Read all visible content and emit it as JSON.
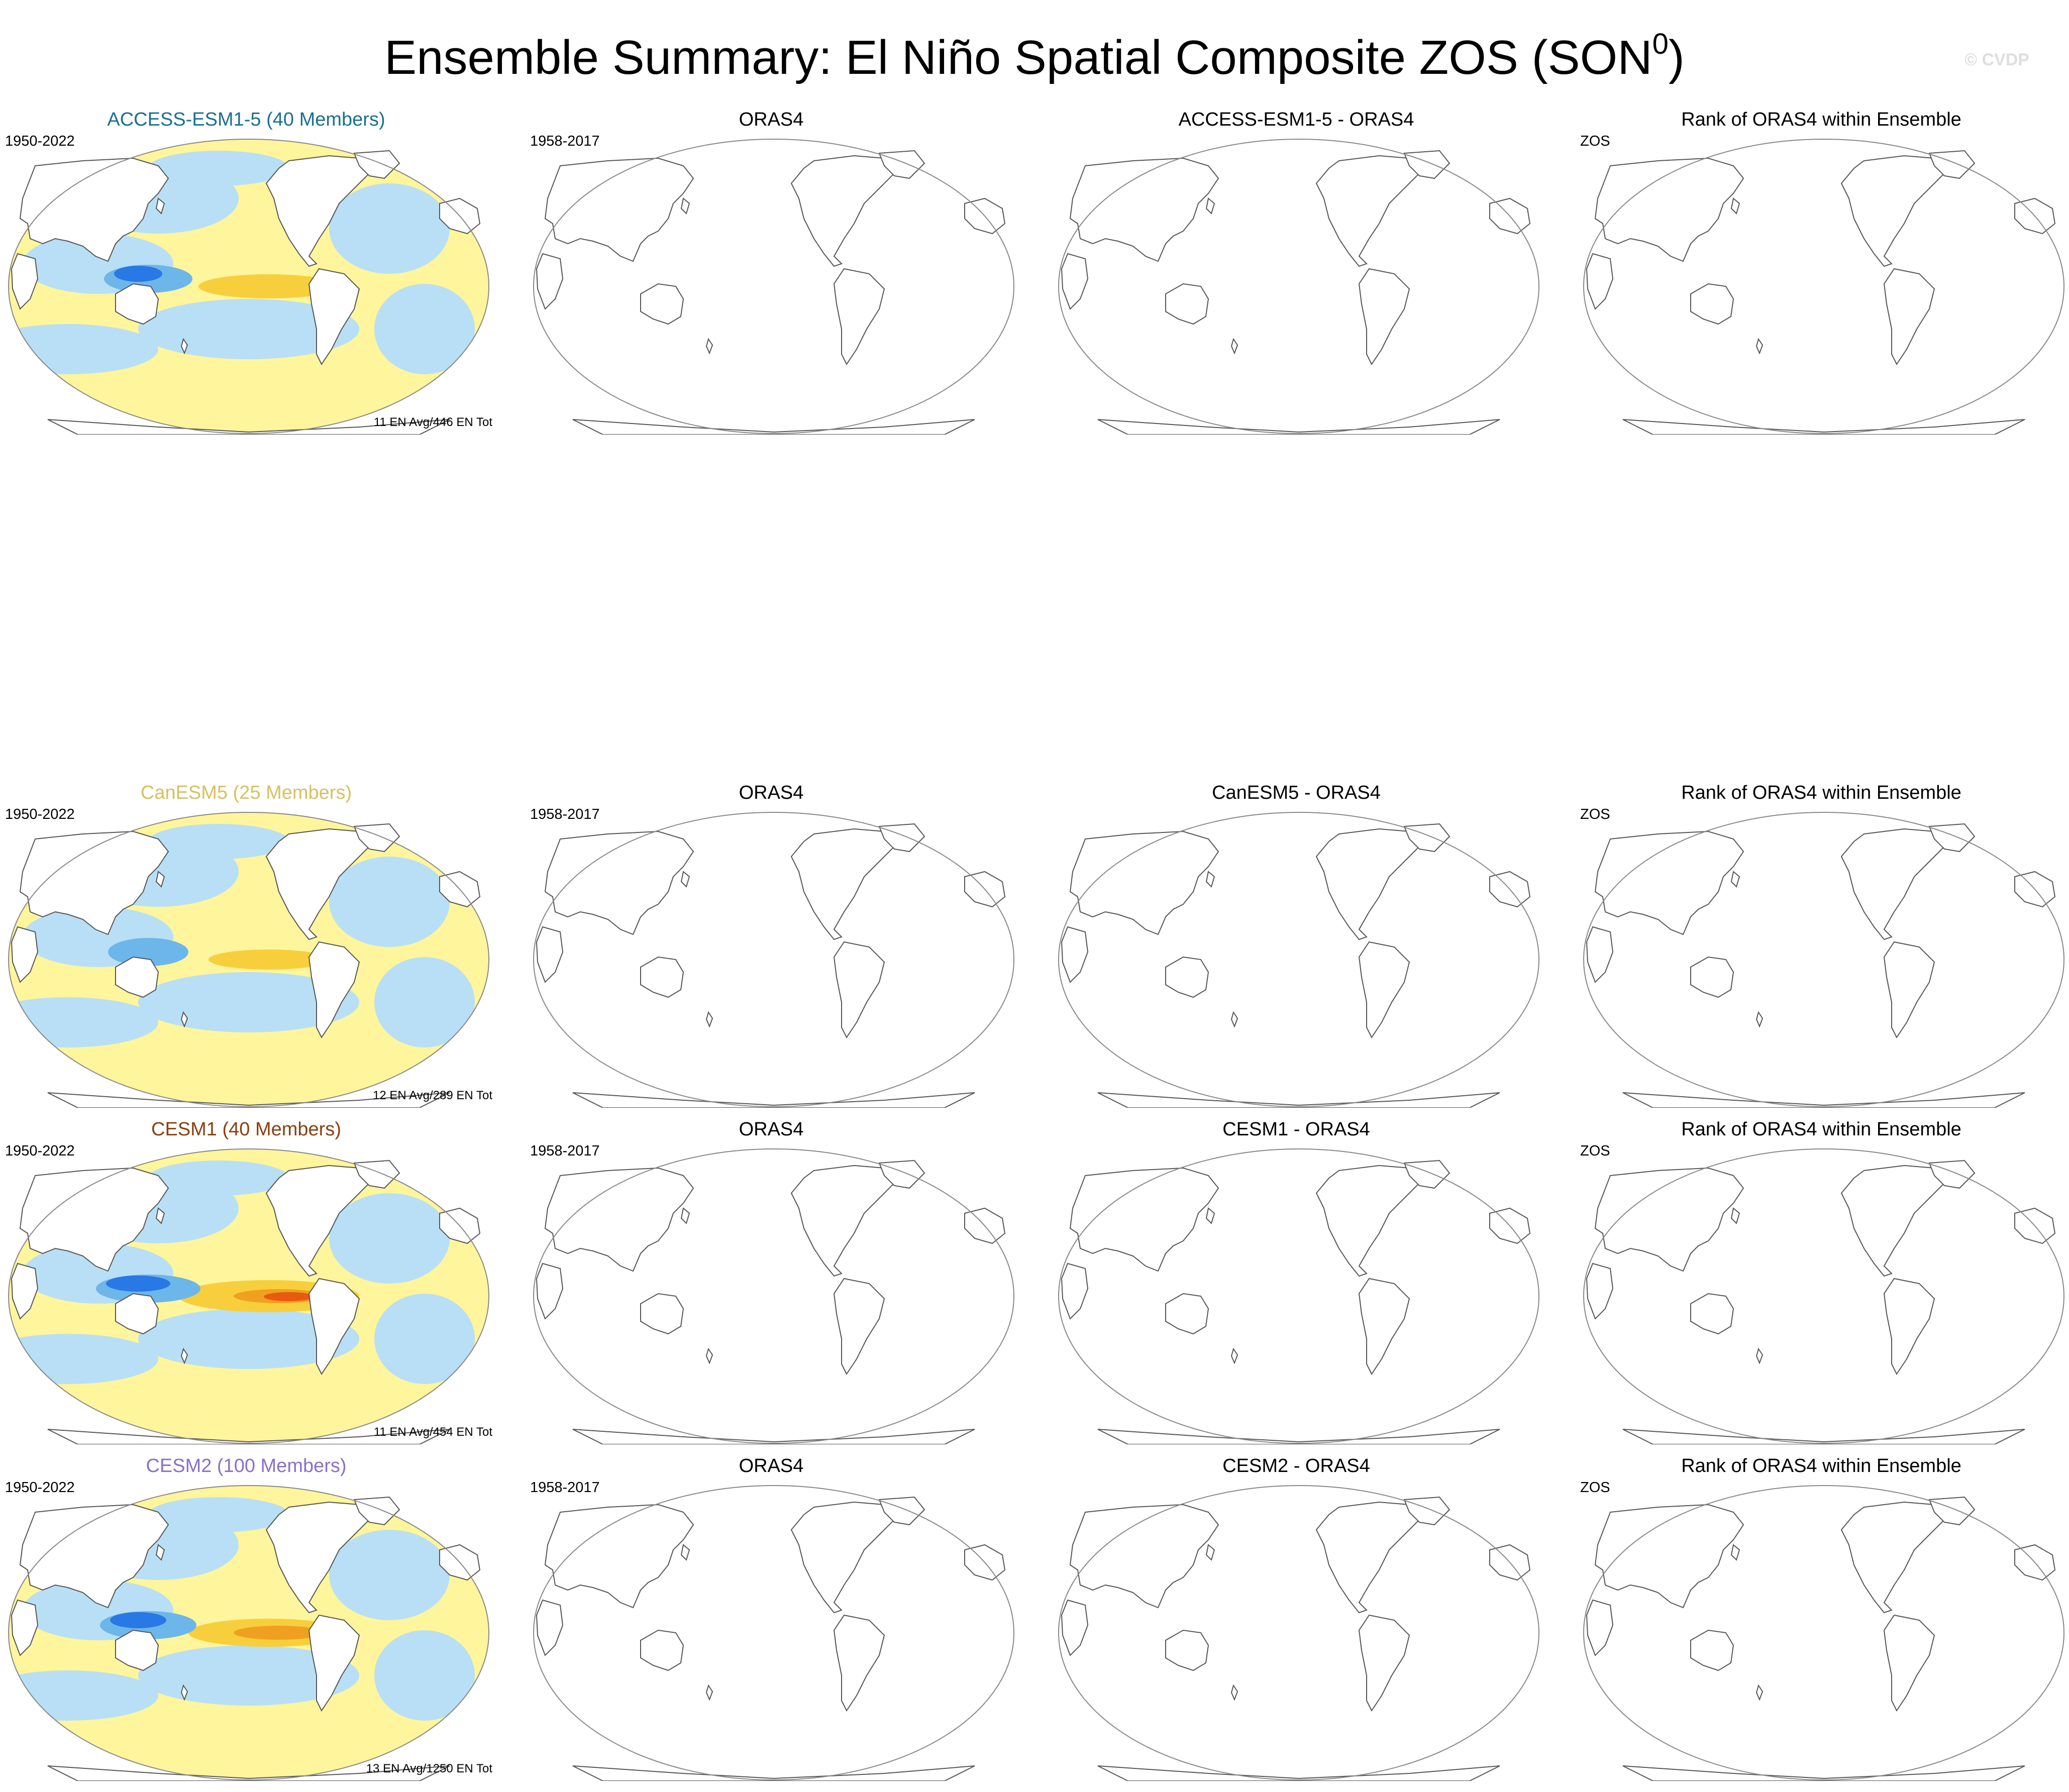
{
  "title": {
    "main": "Ensemble Summary: El Niño Spatial Composite ZOS (SON",
    "sup": "0",
    "close": ")"
  },
  "watermark": "© CVDP",
  "colors": {
    "cool_light": "#b8dff5",
    "cool_mid": "#6cb6ea",
    "cool_dark": "#2878e6",
    "warm_light": "#fff59c",
    "warm_mid": "#f7cf3c",
    "warm_dark": "#f0a020",
    "warm_peak": "#e85a10"
  },
  "rows": [
    {
      "model": {
        "title": "ACCESS-ESM1-5 (40 Members)",
        "title_color": "#1a7090",
        "period": "1950-2022",
        "stat": "11 EN Avg/446 EN Tot",
        "pattern_intensity": 1
      },
      "obs": {
        "title": "ORAS4",
        "period": "1958-2017"
      },
      "diff": {
        "title": "ACCESS-ESM1-5 - ORAS4"
      },
      "rank": {
        "title": "Rank of ORAS4 within Ensemble",
        "label": "ZOS"
      }
    },
    {
      "model": {
        "title": "CanESM5 (25 Members)",
        "title_color": "#d8c060",
        "period": "1950-2022",
        "stat": "12 EN Avg/289 EN Tot",
        "pattern_intensity": 0
      },
      "obs": {
        "title": "ORAS4",
        "period": "1958-2017"
      },
      "diff": {
        "title": "CanESM5 - ORAS4"
      },
      "rank": {
        "title": "Rank of ORAS4 within Ensemble",
        "label": "ZOS"
      }
    },
    {
      "model": {
        "title": "CESM1 (40 Members)",
        "title_color": "#8a4010",
        "period": "1950-2022",
        "stat": "11 EN Avg/454 EN Tot",
        "pattern_intensity": 3
      },
      "obs": {
        "title": "ORAS4",
        "period": "1958-2017"
      },
      "diff": {
        "title": "CESM1 - ORAS4"
      },
      "rank": {
        "title": "Rank of ORAS4 within Ensemble",
        "label": "ZOS"
      }
    },
    {
      "model": {
        "title": "CESM2 (100 Members)",
        "title_color": "#8a70c8",
        "period": "1950-2022",
        "stat": "13 EN Avg/1250 EN Tot",
        "pattern_intensity": 2
      },
      "obs": {
        "title": "ORAS4",
        "period": "1958-2017"
      },
      "diff": {
        "title": "CESM2 - ORAS4"
      },
      "rank": {
        "title": "Rank of ORAS4 within Ensemble",
        "label": "ZOS"
      }
    }
  ]
}
